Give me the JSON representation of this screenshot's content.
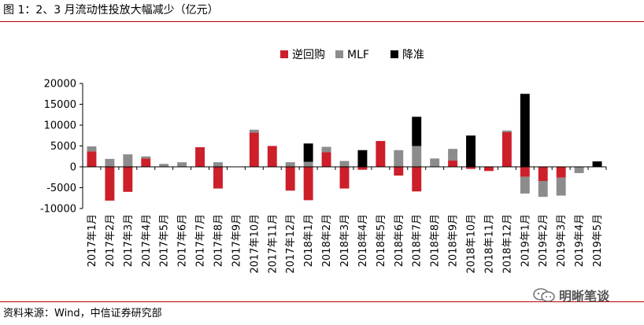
{
  "figure": {
    "title": "图 1：2、3 月流动性投放大幅减少（亿元）",
    "source": "资料来源：Wind，中信证券研究部",
    "watermark": "明晰笔谈",
    "watermark_icon": "wechat-icon"
  },
  "chart_data": {
    "type": "bar",
    "stacked": true,
    "title": "",
    "xlabel": "",
    "ylabel": "",
    "ylim": [
      -10000,
      20000
    ],
    "yticks": [
      -10000,
      -5000,
      0,
      5000,
      10000,
      15000,
      20000
    ],
    "ytick_labels": [
      "-10000",
      "-5000",
      "0",
      "5000",
      "10000",
      "15000",
      "20000"
    ],
    "grid": false,
    "legend_position": "top",
    "categories": [
      "2017年1月",
      "2017年2月",
      "2017年3月",
      "2017年4月",
      "2017年5月",
      "2017年6月",
      "2017年7月",
      "2017年8月",
      "2017年9月",
      "2017年10月",
      "2017年11月",
      "2017年12月",
      "2018年1月",
      "2018年2月",
      "2018年3月",
      "2018年4月",
      "2018年5月",
      "2018年6月",
      "2018年7月",
      "2018年8月",
      "2018年9月",
      "2018年10月",
      "2018年11月",
      "2018年12月",
      "2019年1月",
      "2019年2月",
      "2019年3月",
      "2019年4月",
      "2019年5月"
    ],
    "series": [
      {
        "name": "逆回购",
        "color": "#cc1f2a",
        "values": [
          3700,
          -8100,
          -6000,
          2000,
          0,
          0,
          4700,
          -5200,
          0,
          8200,
          5000,
          -5700,
          -8000,
          3500,
          -5200,
          -700,
          6200,
          -2100,
          -5900,
          0,
          1500,
          -500,
          -1000,
          8300,
          -2400,
          -3400,
          -2600,
          0,
          0
        ]
      },
      {
        "name": "MLF",
        "color": "#8c8c8c",
        "values": [
          1200,
          1900,
          3000,
          500,
          700,
          1100,
          0,
          1100,
          0,
          700,
          0,
          1100,
          1200,
          1300,
          1400,
          0,
          0,
          4000,
          5000,
          2000,
          2800,
          0,
          0,
          400,
          -4000,
          -3800,
          -4300,
          -1500,
          0
        ]
      },
      {
        "name": "降准",
        "color": "#000000",
        "values": [
          0,
          0,
          0,
          0,
          0,
          0,
          0,
          0,
          0,
          0,
          0,
          0,
          4400,
          0,
          0,
          4000,
          0,
          0,
          7000,
          0,
          0,
          7500,
          0,
          0,
          17500,
          0,
          0,
          0,
          1300
        ]
      }
    ]
  }
}
